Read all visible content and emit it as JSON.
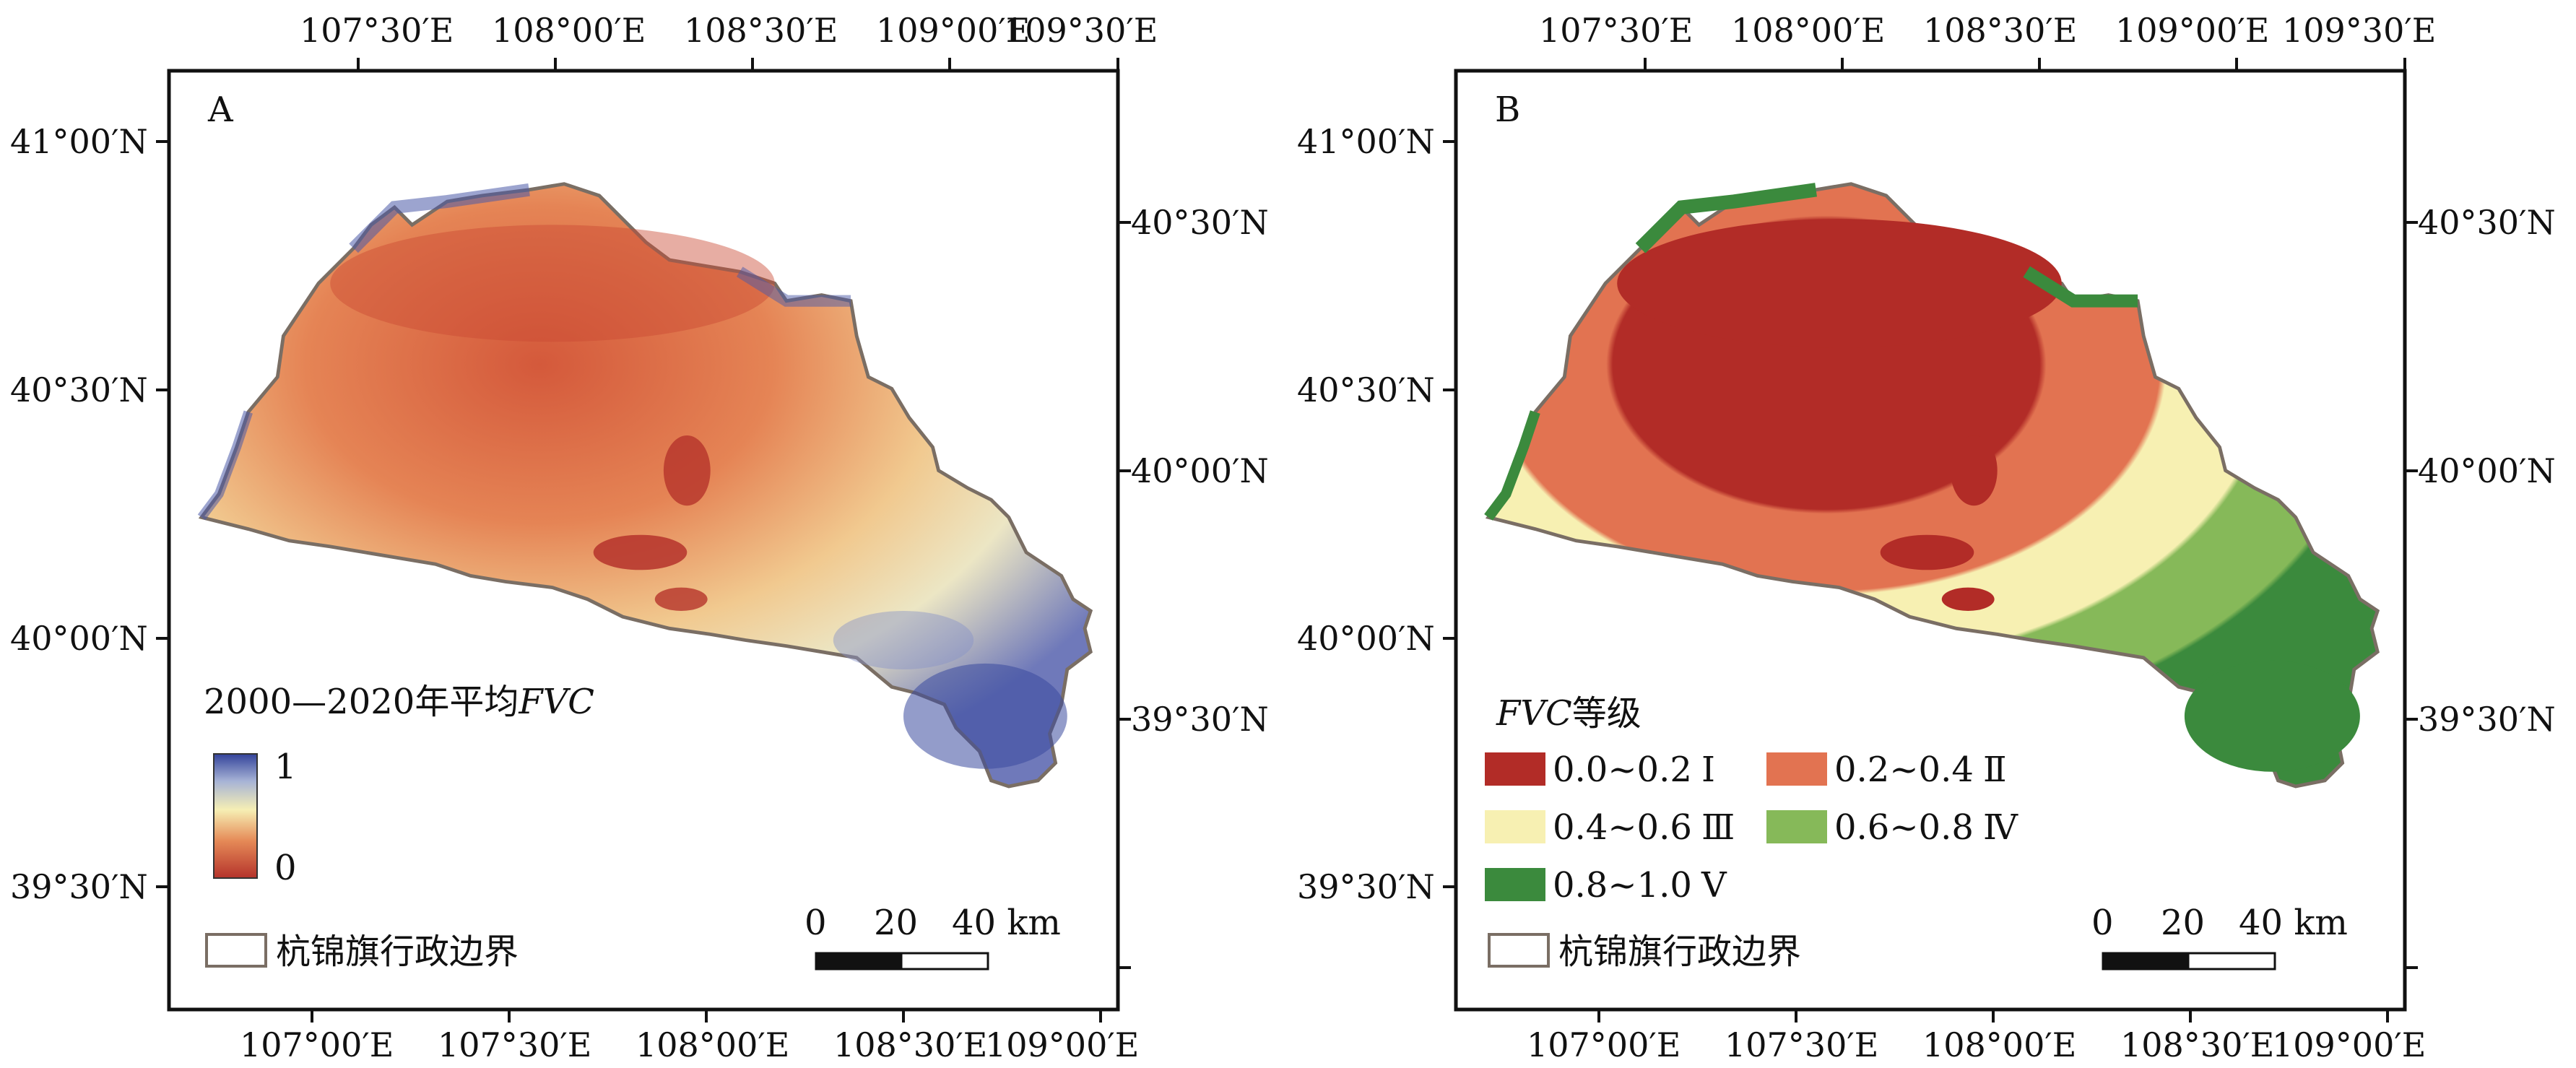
{
  "colors": {
    "fvc_low": "#b5332b",
    "fvc_mid": "#f5efb6",
    "fvc_high": "#3a4a9e",
    "class_I": "#b22c27",
    "class_II": "#e27351",
    "class_III": "#f7f0b2",
    "class_IV": "#86b959",
    "class_V": "#3b8a3d",
    "boundary": "#7a6e64"
  },
  "panels": [
    {
      "label": "A",
      "top_ticks": [
        "107°30′E",
        "108°00′E",
        "108°30′E",
        "109°00′E",
        "109°30′E"
      ],
      "bottom_ticks": [
        "107°00′E",
        "107°30′E",
        "108°00′E",
        "108°30′E",
        "109°00′E"
      ],
      "left_ticks": [
        "41°00′N",
        "40°30′N",
        "40°00′N",
        "39°30′N"
      ],
      "right_ticks": [
        "40°30′N",
        "40°00′N",
        "39°30′N"
      ],
      "legend": {
        "title_prefix": "2000—2020年平均",
        "title_italic": "FVC",
        "max_label": "1",
        "min_label": "0",
        "boundary_label": "杭锦旗行政边界"
      },
      "scale_bar": {
        "labels": [
          "0",
          "20",
          "40 km"
        ]
      }
    },
    {
      "label": "B",
      "top_ticks": [
        "107°30′E",
        "108°00′E",
        "108°30′E",
        "109°00′E",
        "109°30′E"
      ],
      "bottom_ticks": [
        "107°00′E",
        "107°30′E",
        "108°00′E",
        "108°30′E",
        "109°00′E"
      ],
      "left_ticks": [
        "41°00′N",
        "40°30′N",
        "40°00′N",
        "39°30′N"
      ],
      "right_ticks": [
        "40°30′N",
        "40°00′N",
        "39°30′N"
      ],
      "legend": {
        "title_italic": "FVC",
        "title_suffix": "等级",
        "classes": [
          {
            "range": "0.0~0.2",
            "grade": "Ⅰ"
          },
          {
            "range": "0.2~0.4",
            "grade": "Ⅱ"
          },
          {
            "range": "0.4~0.6",
            "grade": "Ⅲ"
          },
          {
            "range": "0.6~0.8",
            "grade": "Ⅳ"
          },
          {
            "range": "0.8~1.0",
            "grade": "Ⅴ"
          }
        ],
        "boundary_label": "杭锦旗行政边界"
      },
      "scale_bar": {
        "labels": [
          "0",
          "20",
          "40 km"
        ]
      }
    }
  ]
}
